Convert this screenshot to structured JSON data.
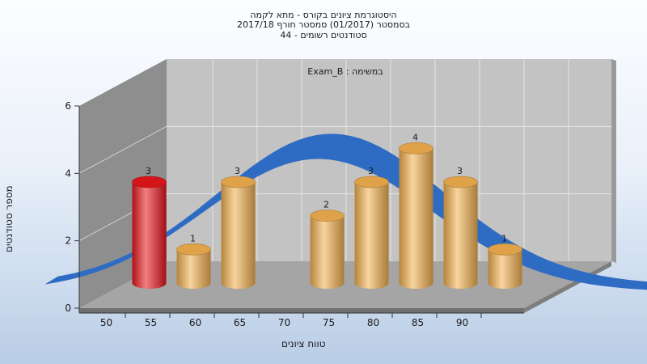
{
  "chart": {
    "title_lines": [
      "היסטוגרמת ציונים בקורס - מתא לקמה",
      "בסמסטר  (01/2017)  סמסטר חורף 2017/18",
      "סטודנטים רשומים - 44"
    ],
    "task_label": "Exam_B : במשימה"
  },
  "chart_data": {
    "type": "bar",
    "xlabel": "טווח ציונים",
    "ylabel": "מספר סטודנטים",
    "x_ticks": [
      "50",
      "55",
      "60",
      "65",
      "70",
      "75",
      "80",
      "85",
      "90"
    ],
    "y_ticks": [
      "0",
      "2",
      "4",
      "6"
    ],
    "ylim": [
      0,
      6
    ],
    "bars": [
      {
        "x": 50,
        "value": 3,
        "label": "3",
        "color": "#e8161b"
      },
      {
        "x": 55,
        "value": 1,
        "label": "1",
        "color": "#f2b04f"
      },
      {
        "x": 60,
        "value": 3,
        "label": "3",
        "color": "#f2b04f"
      },
      {
        "x": 70,
        "value": 2,
        "label": "2",
        "color": "#f2b04f"
      },
      {
        "x": 75,
        "value": 3,
        "label": "3",
        "color": "#f2b04f"
      },
      {
        "x": 80,
        "value": 4,
        "label": "4",
        "color": "#f2b04f"
      },
      {
        "x": 85,
        "value": 3,
        "label": "3",
        "color": "#f2b04f"
      },
      {
        "x": 90,
        "value": 1,
        "label": "1",
        "color": "#f2b04f"
      }
    ],
    "curve": {
      "color": "#2e6cc4",
      "back_color": "#5a5a5a"
    },
    "grid": true,
    "colors": {
      "wall": "#c3c3c3",
      "side_wall": "#8e8e8e",
      "floor": "#a5a5a5"
    }
  }
}
